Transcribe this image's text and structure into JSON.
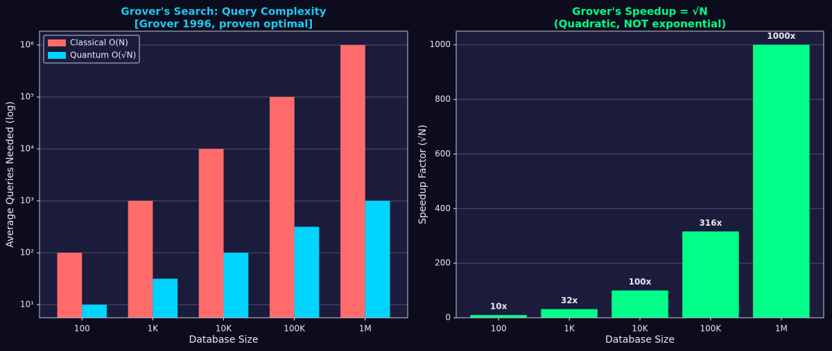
{
  "chart_data": [
    {
      "type": "bar",
      "title": "Grover's Search: Query Complexity",
      "subtitle": "[Grover 1996, proven optimal]",
      "title_color": "#1ec8f0",
      "x_label": "Database Size",
      "y_label": "Average Queries Needed (log)",
      "categories": [
        "100",
        "1K",
        "10K",
        "100K",
        "1M"
      ],
      "series": [
        {
          "name": "Classical O(N)",
          "color": "#ff6b6b",
          "values": [
            100,
            1000,
            10000,
            100000,
            1000000
          ]
        },
        {
          "name": "Quantum O(√N)",
          "color": "#00d4ff",
          "values": [
            10,
            31.62,
            100,
            316.23,
            1000
          ]
        }
      ],
      "log_scale": true,
      "ylim": [
        5.6,
        1850000
      ],
      "yticks": [
        {
          "value": 10,
          "label": "10¹"
        },
        {
          "value": 100,
          "label": "10²"
        },
        {
          "value": 1000,
          "label": "10³"
        },
        {
          "value": 10000,
          "label": "10⁴"
        },
        {
          "value": 100000,
          "label": "10⁵"
        },
        {
          "value": 1000000,
          "label": "10⁶"
        }
      ],
      "grid": true,
      "legend": "upper-left"
    },
    {
      "type": "bar",
      "title": "Grover's Speedup = √N",
      "subtitle": "(Quadratic, NOT exponential)",
      "title_color": "#00ff88",
      "x_label": "Database Size",
      "y_label": "Speedup Factor (√N)",
      "categories": [
        "100",
        "1K",
        "10K",
        "100K",
        "1M"
      ],
      "values": [
        10,
        31.62,
        100,
        316.23,
        1000
      ],
      "value_labels": [
        "10x",
        "32x",
        "100x",
        "316x",
        "1000x"
      ],
      "color": "#00ff88",
      "log_scale": false,
      "ylim": [
        0,
        1050
      ],
      "yticks": [
        0,
        200,
        400,
        600,
        800,
        1000
      ],
      "grid": true
    }
  ]
}
